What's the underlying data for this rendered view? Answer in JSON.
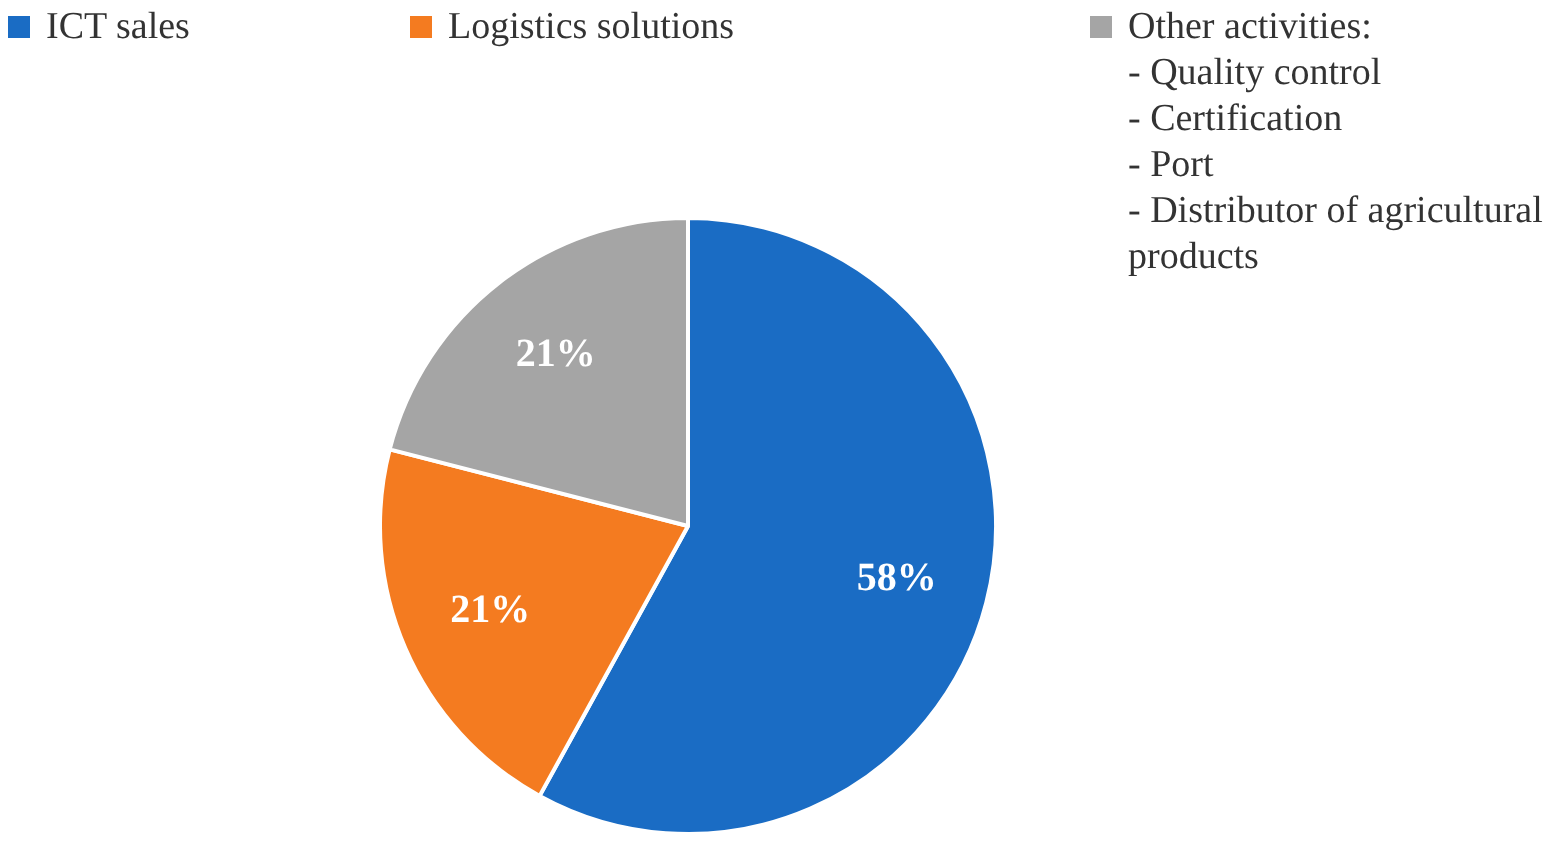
{
  "chart_data": {
    "type": "pie",
    "categories": [
      "ICT sales",
      "Logistics solutions",
      "Other activities:\n- Quality control\n- Certification\n- Port\n- Distributor of agricultural products"
    ],
    "values": [
      58,
      21,
      21
    ],
    "colors": [
      "#1a6cc4",
      "#f47b20",
      "#a5a5a5"
    ],
    "value_labels": [
      "58%",
      "21%",
      "21%"
    ],
    "legend": "top"
  }
}
